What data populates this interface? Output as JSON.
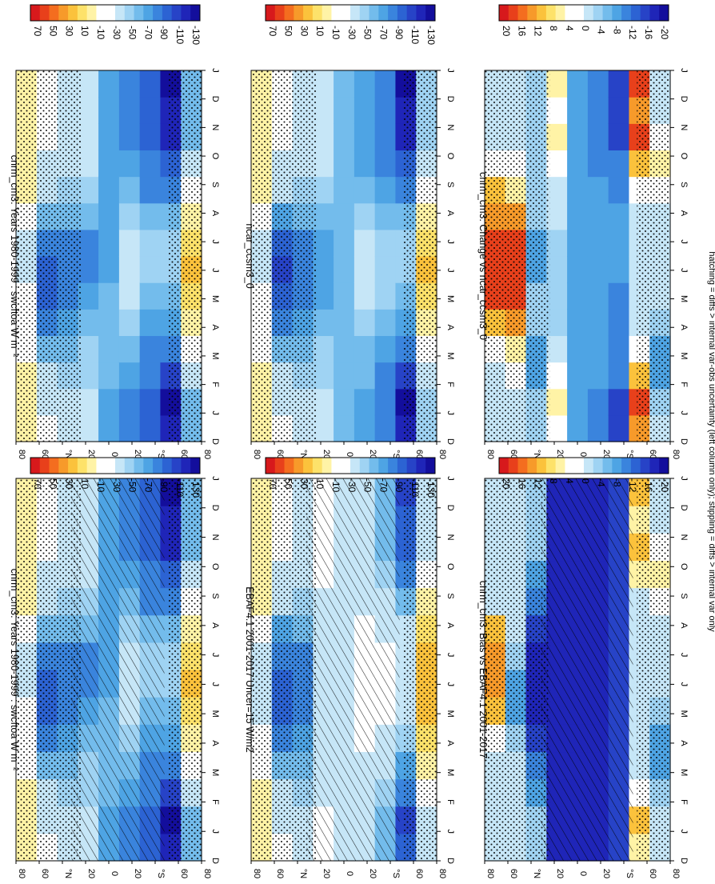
{
  "caption": "hatching = diffs > internal var-obs uncertainty (left column only); stippling = diffs > internal var only",
  "months": [
    "D",
    "J",
    "F",
    "M",
    "A",
    "M",
    "J",
    "J",
    "A",
    "S",
    "O",
    "N",
    "D",
    "J"
  ],
  "lat_ticks": [
    "80",
    "60",
    "°N",
    "20",
    "0",
    "20",
    "°S",
    "60",
    "80"
  ],
  "colorbars": {
    "main": {
      "labels": [
        "70",
        "50",
        "30",
        "10",
        "-10",
        "-30",
        "-50",
        "-70",
        "-90",
        "-110",
        "-130"
      ],
      "colors": [
        "#d7191c",
        "#e8401b",
        "#f46d1f",
        "#f79a2a",
        "#fbc23c",
        "#fde26a",
        "#fff3a6",
        "#ffffff",
        "#ffffff",
        "#c6e6f7",
        "#9fd3f3",
        "#73bcec",
        "#4ea4e4",
        "#3a84dd",
        "#2c63d3",
        "#2743c7",
        "#1f25b8",
        "#130e9c"
      ]
    },
    "diff": {
      "labels": [
        "20",
        "16",
        "12",
        "8",
        "4",
        "0",
        "-4",
        "-8",
        "-12",
        "-16",
        "-20"
      ],
      "colors": [
        "#d7191c",
        "#e8401b",
        "#f46d1f",
        "#f79a2a",
        "#fbc23c",
        "#fde26a",
        "#fff3a6",
        "#ffffff",
        "#ffffff",
        "#c6e6f7",
        "#9fd3f3",
        "#73bcec",
        "#4ea4e4",
        "#3a84dd",
        "#2c63d3",
        "#2743c7",
        "#1f25b8",
        "#130e9c"
      ]
    }
  },
  "panels": [
    {
      "title": "cnrm_cm3: Years 1980-1999 : swcftoa W m⁻²",
      "hatching": true,
      "stipple": true
    },
    {
      "title": "EBAF4.1 2001-2017 Uncer=15 W/m2",
      "hatching": true,
      "stipple": true
    },
    {
      "title": "cnrm_cm3: Bias vs EBAF4.1 2001-2017",
      "hatching": true,
      "stipple": true
    },
    {
      "title": "cnrm_cm3: Years 1980-1999 : swcftoa W m⁻²",
      "hatching": false,
      "stipple": true
    },
    {
      "title": "ncar_ccsm3_0",
      "hatching": false,
      "stipple": true
    },
    {
      "title": "cnrm_cm3: Change vs ncar_ccsm3_0",
      "hatching": false,
      "stipple": true
    }
  ],
  "chart_data": {
    "type": "heatmap",
    "x": [
      "D",
      "J",
      "F",
      "M",
      "A",
      "M",
      "J",
      "J",
      "A",
      "S",
      "O",
      "N",
      "D",
      "J"
    ],
    "y": [
      80,
      60,
      40,
      20,
      0,
      -20,
      -40,
      -60,
      -80
    ],
    "variable": "swcftoa",
    "units": "W m⁻²",
    "panels": [
      {
        "name": "cnrm_cm3: Years 1980-1999 : swcftoa W m⁻²",
        "values": [
          [
            0,
            0,
            0,
            -10,
            -20,
            -20,
            -30,
            -30,
            -20,
            0,
            0,
            0,
            0,
            0
          ],
          [
            -20,
            -30,
            -40,
            -60,
            -80,
            -100,
            -100,
            -90,
            -60,
            -40,
            -30,
            -20,
            -20,
            -20
          ],
          [
            -40,
            -40,
            -50,
            -60,
            -70,
            -80,
            -90,
            -80,
            -60,
            -50,
            -40,
            -40,
            -40,
            -40
          ],
          [
            -40,
            -40,
            -50,
            -50,
            -60,
            -70,
            -80,
            -80,
            -60,
            -50,
            -40,
            -40,
            -40,
            -40
          ],
          [
            -70,
            -70,
            -60,
            -60,
            -60,
            -60,
            -70,
            -70,
            -70,
            -70,
            -70,
            -70,
            -70,
            -70
          ],
          [
            -80,
            -80,
            -70,
            -60,
            -50,
            -40,
            -40,
            -40,
            -50,
            -60,
            -70,
            -80,
            -80,
            -80
          ],
          [
            -100,
            -100,
            -90,
            -80,
            -70,
            -60,
            -50,
            -50,
            -60,
            -80,
            -90,
            -100,
            -100,
            -100
          ],
          [
            -120,
            -130,
            -110,
            -90,
            -70,
            -60,
            -50,
            -50,
            -60,
            -80,
            -100,
            -120,
            -120,
            -130
          ],
          [
            -60,
            -60,
            -40,
            -20,
            0,
            10,
            20,
            10,
            0,
            -20,
            -40,
            -60,
            -60,
            -60
          ]
        ]
      },
      {
        "name": "EBAF4.1 2001-2017 Uncer=15 W/m2",
        "values": [
          [
            0,
            0,
            0,
            -10,
            -20,
            -30,
            -30,
            -30,
            -20,
            0,
            0,
            0,
            0,
            0
          ],
          [
            -20,
            -30,
            -40,
            -60,
            -80,
            -100,
            -100,
            -90,
            -70,
            -40,
            -30,
            -20,
            -20,
            -20
          ],
          [
            -40,
            -40,
            -50,
            -60,
            -70,
            -80,
            -80,
            -80,
            -60,
            -50,
            -40,
            -40,
            -40,
            -40
          ],
          [
            -20,
            -20,
            -30,
            -30,
            -30,
            -40,
            -40,
            -40,
            -30,
            -30,
            -20,
            -20,
            -20,
            -20
          ],
          [
            -30,
            -30,
            -30,
            -30,
            -30,
            -30,
            -30,
            -30,
            -30,
            -30,
            -30,
            -30,
            -30,
            -30
          ],
          [
            -40,
            -40,
            -30,
            -30,
            -20,
            -20,
            -20,
            -20,
            -20,
            -30,
            -40,
            -40,
            -40,
            -40
          ],
          [
            -60,
            -60,
            -50,
            -40,
            -30,
            -20,
            -20,
            -20,
            -30,
            -40,
            -50,
            -60,
            -60,
            -60
          ],
          [
            -100,
            -110,
            -90,
            -70,
            -50,
            -40,
            -30,
            -30,
            -40,
            -60,
            -80,
            -100,
            -100,
            -110
          ],
          [
            -40,
            -40,
            -20,
            0,
            10,
            20,
            20,
            20,
            10,
            0,
            -20,
            -40,
            -40,
            -40
          ]
        ]
      },
      {
        "name": "cnrm_cm3: Bias vs EBAF4.1 2001-2017",
        "values": [
          [
            0,
            0,
            0,
            0,
            4,
            12,
            16,
            16,
            12,
            0,
            0,
            0,
            0,
            0
          ],
          [
            0,
            0,
            0,
            0,
            -4,
            -8,
            -8,
            -4,
            0,
            0,
            0,
            0,
            0,
            0
          ],
          [
            -4,
            -4,
            -8,
            -12,
            -16,
            -20,
            -20,
            -20,
            -16,
            -12,
            -8,
            -4,
            -4,
            -4
          ],
          [
            -20,
            -20,
            -20,
            -20,
            -20,
            -20,
            -20,
            -20,
            -20,
            -20,
            -20,
            -20,
            -20,
            -20
          ],
          [
            -20,
            -20,
            -20,
            -20,
            -20,
            -20,
            -20,
            -20,
            -20,
            -20,
            -20,
            -20,
            -20,
            -20
          ],
          [
            -20,
            -20,
            -20,
            -20,
            -20,
            -20,
            -20,
            -20,
            -20,
            -20,
            -20,
            -20,
            -20,
            -20
          ],
          [
            -16,
            -16,
            -16,
            -16,
            -16,
            -16,
            -16,
            -16,
            -16,
            -16,
            -16,
            -16,
            -16,
            -16
          ],
          [
            8,
            12,
            4,
            0,
            0,
            0,
            0,
            0,
            0,
            0,
            8,
            12,
            8,
            12
          ],
          [
            0,
            0,
            -4,
            -8,
            -8,
            -4,
            0,
            0,
            0,
            4,
            8,
            4,
            0,
            0
          ]
        ]
      },
      {
        "name": "ncar_ccsm3_0",
        "values": [
          [
            0,
            0,
            0,
            -10,
            -20,
            -20,
            -30,
            -30,
            -20,
            0,
            0,
            0,
            0,
            0
          ],
          [
            -20,
            -30,
            -40,
            -60,
            -80,
            -100,
            -110,
            -100,
            -70,
            -40,
            -30,
            -20,
            -20,
            -20
          ],
          [
            -40,
            -40,
            -50,
            -60,
            -70,
            -80,
            -90,
            -80,
            -60,
            -50,
            -40,
            -40,
            -40,
            -40
          ],
          [
            -40,
            -40,
            -50,
            -50,
            -60,
            -70,
            -70,
            -70,
            -60,
            -50,
            -40,
            -40,
            -40,
            -40
          ],
          [
            -60,
            -60,
            -60,
            -60,
            -60,
            -60,
            -60,
            -60,
            -60,
            -60,
            -60,
            -60,
            -60,
            -60
          ],
          [
            -70,
            -70,
            -60,
            -60,
            -50,
            -40,
            -40,
            -40,
            -50,
            -60,
            -70,
            -70,
            -70,
            -70
          ],
          [
            -90,
            -90,
            -80,
            -70,
            -60,
            -50,
            -50,
            -50,
            -60,
            -70,
            -80,
            -90,
            -90,
            -90
          ],
          [
            -120,
            -130,
            -110,
            -90,
            -70,
            -60,
            -50,
            -50,
            -60,
            -80,
            -100,
            -120,
            -120,
            -130
          ],
          [
            -50,
            -50,
            -30,
            -10,
            0,
            10,
            20,
            10,
            0,
            -20,
            -40,
            -50,
            -50,
            -50
          ]
        ]
      },
      {
        "name": "cnrm_cm3: Change vs ncar_ccsm3_0",
        "values": [
          [
            0,
            0,
            0,
            4,
            12,
            20,
            20,
            20,
            16,
            12,
            4,
            0,
            0,
            0
          ],
          [
            0,
            0,
            4,
            8,
            16,
            20,
            20,
            20,
            16,
            8,
            4,
            0,
            0,
            0
          ],
          [
            -4,
            -4,
            -8,
            -8,
            -4,
            -4,
            -8,
            -8,
            -4,
            -4,
            -4,
            -4,
            -4,
            -4
          ],
          [
            4,
            8,
            4,
            0,
            -4,
            -4,
            -4,
            -4,
            0,
            0,
            4,
            8,
            4,
            8
          ],
          [
            -8,
            -8,
            -8,
            -8,
            -8,
            -8,
            -8,
            -8,
            -8,
            -8,
            -8,
            -8,
            -8,
            -8
          ],
          [
            -12,
            -12,
            -8,
            -8,
            -8,
            -8,
            -8,
            -8,
            -8,
            -8,
            -12,
            -12,
            -12,
            -12
          ],
          [
            -16,
            -16,
            -12,
            -12,
            -12,
            -12,
            -8,
            -8,
            -8,
            -12,
            -12,
            -16,
            -16,
            -16
          ],
          [
            16,
            20,
            12,
            4,
            0,
            0,
            0,
            0,
            0,
            4,
            12,
            20,
            16,
            20
          ],
          [
            0,
            -4,
            -8,
            -8,
            -4,
            0,
            0,
            0,
            0,
            4,
            8,
            4,
            0,
            0
          ]
        ]
      }
    ]
  }
}
